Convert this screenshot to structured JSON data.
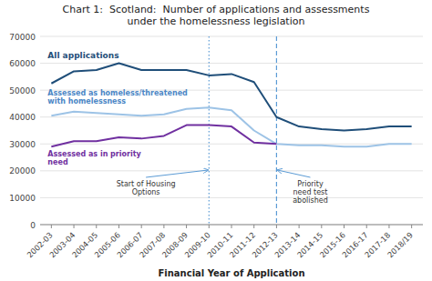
{
  "chart_data": {
    "type": "line",
    "title": "Chart 1:  Scotland:  Number of applications and assessments\nunder the homelessness legislation",
    "x_label": "Financial Year of Application",
    "categories": [
      "2002-03",
      "2003-04",
      "2004-05",
      "2005-06",
      "2006-07",
      "2007-08",
      "2008-09",
      "2009-10",
      "2010-11",
      "2011-12",
      "2012-13",
      "2013-14",
      "2014-15",
      "2015-16",
      "2016-17",
      "2017-18",
      "2018/19"
    ],
    "series": [
      {
        "name": "All applications",
        "color": "#1f4e79",
        "values": [
          52500,
          57000,
          57500,
          60000,
          57500,
          57500,
          57500,
          55500,
          56000,
          53000,
          40000,
          36500,
          35500,
          35000,
          35500,
          36500,
          36500
        ]
      },
      {
        "name": "Assessed as homeless/threatened\nwith homelessness",
        "color": "#9dc3e6",
        "values": [
          40500,
          42000,
          41500,
          41000,
          40500,
          41000,
          43000,
          43500,
          42500,
          35000,
          30000,
          29500,
          29500,
          29000,
          29000,
          30000,
          30000
        ]
      },
      {
        "name": "Assessed as in priority\nneed",
        "color": "#7030a0",
        "values": [
          29000,
          31000,
          31000,
          32500,
          32000,
          33000,
          37000,
          37000,
          36500,
          30500,
          30000,
          null,
          null,
          null,
          null,
          null,
          null
        ]
      }
    ],
    "annotations": [
      {
        "text": "Start of Housing\nOptions",
        "x": "2009-10",
        "line_style": "dotted",
        "color": "#5b9bd5"
      },
      {
        "text": "Priority\nneed test\nabolished",
        "x": "2012-13",
        "line_style": "dashed",
        "color": "#5b9bd5"
      }
    ],
    "ylim": [
      0,
      70000
    ],
    "yticks": [
      0,
      10000,
      20000,
      30000,
      40000,
      50000,
      60000,
      70000
    ],
    "grid": true
  }
}
